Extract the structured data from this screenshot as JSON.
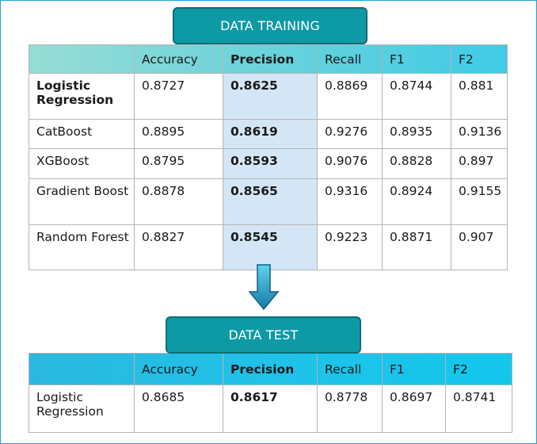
{
  "training": {
    "title": "DATA TRAINING",
    "headers": [
      "",
      "Accuracy",
      "Precision",
      "Recall",
      "F1",
      "F2"
    ],
    "rows": [
      [
        "Logistic Regression",
        "0.8727",
        "0.8625",
        "0.8869",
        "0.8744",
        "0.881"
      ],
      [
        "CatBoost",
        "0.8895",
        "0.8619",
        "0.9276",
        "0.8935",
        "0.9136"
      ],
      [
        "XGBoost",
        "0.8795",
        "0.8593",
        "0.9076",
        "0.8828",
        "0.897"
      ],
      [
        "Gradient Boost",
        "0.8878",
        "0.8565",
        "0.9316",
        "0.8924",
        "0.9155"
      ],
      [
        "Random Forest",
        "0.8827",
        "0.8545",
        "0.9223",
        "0.8871",
        "0.907"
      ]
    ]
  },
  "test": {
    "title": "DATA TEST",
    "headers": [
      "",
      "Accuracy",
      "Precision",
      "Recall",
      "F1",
      "F2"
    ],
    "rows": [
      [
        "Logistic Regression",
        "0.8685",
        "0.8617",
        "0.8778",
        "0.8697",
        "0.8741"
      ]
    ]
  },
  "icons": {
    "flow_arrow": "down-arrow-icon"
  },
  "colors": {
    "banner": "#0e9aa4",
    "precision_highlight": "#d4e6f6"
  }
}
